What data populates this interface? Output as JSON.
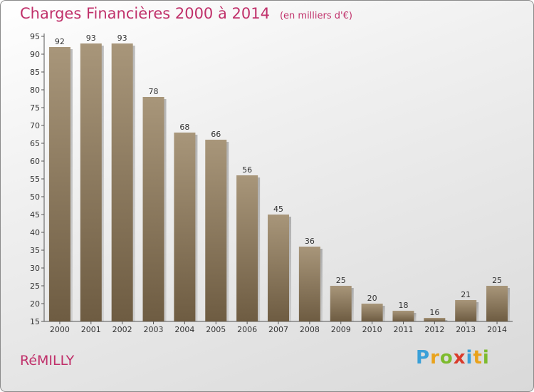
{
  "title": "Charges Financières 2000 à 2014",
  "unit_note": "(en milliers d'€)",
  "commune": "RéMILLY",
  "logo": {
    "letters": [
      "P",
      "r",
      "o",
      "x",
      "i",
      "t",
      "i"
    ],
    "colors": [
      "#3aa0d8",
      "#e9a21b",
      "#7dbb2e",
      "#d93b2b",
      "#3aa0d8",
      "#e9a21b",
      "#7dbb2e"
    ]
  },
  "chart_data": {
    "type": "bar",
    "categories": [
      "2000",
      "2001",
      "2002",
      "2003",
      "2004",
      "2005",
      "2006",
      "2007",
      "2008",
      "2009",
      "2010",
      "2011",
      "2012",
      "2013",
      "2014"
    ],
    "values": [
      92,
      93,
      93,
      78,
      68,
      66,
      56,
      45,
      36,
      25,
      20,
      18,
      16,
      21,
      25
    ],
    "ylim": [
      15,
      95
    ],
    "yticks": [
      15,
      20,
      25,
      30,
      35,
      40,
      45,
      50,
      55,
      60,
      65,
      70,
      75,
      80,
      85,
      90,
      95
    ],
    "grid": false,
    "bar_color_top": "#a8967a",
    "bar_color_bottom": "#6e5c42"
  }
}
